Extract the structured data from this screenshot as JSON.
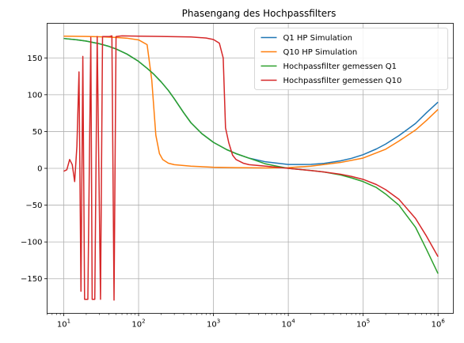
{
  "chart_data": {
    "type": "line",
    "title": "Phasengang des Hochpassfilters",
    "xlabel": "",
    "ylabel": "",
    "xscale": "log",
    "xlim": [
      6,
      1600000
    ],
    "ylim": [
      -197,
      197
    ],
    "grid": true,
    "legend_position": "top-right",
    "x_ticks": [
      {
        "value": 10,
        "base": "10",
        "exp": "1"
      },
      {
        "value": 100,
        "base": "10",
        "exp": "2"
      },
      {
        "value": 1000,
        "base": "10",
        "exp": "3"
      },
      {
        "value": 10000,
        "base": "10",
        "exp": "4"
      },
      {
        "value": 100000,
        "base": "10",
        "exp": "5"
      },
      {
        "value": 1000000,
        "base": "10",
        "exp": "6"
      }
    ],
    "y_ticks": [
      {
        "value": 150,
        "label": "150"
      },
      {
        "value": 100,
        "label": "100"
      },
      {
        "value": 50,
        "label": "50"
      },
      {
        "value": 0,
        "label": "0"
      },
      {
        "value": -50,
        "label": "−50"
      },
      {
        "value": -100,
        "label": "−100"
      },
      {
        "value": -150,
        "label": "−150"
      }
    ],
    "series": [
      {
        "name": "Q1 HP Simulation",
        "color": "#1f77b4",
        "points": [
          [
            10,
            176.4
          ],
          [
            15,
            174.6
          ],
          [
            20,
            172.8
          ],
          [
            30,
            169.2
          ],
          [
            40,
            165.7
          ],
          [
            50,
            162.2
          ],
          [
            70,
            155.2
          ],
          [
            100,
            145.3
          ],
          [
            130,
            135.9
          ],
          [
            160,
            127.8
          ],
          [
            200,
            117.5
          ],
          [
            250,
            105.8
          ],
          [
            300,
            94.5
          ],
          [
            400,
            75.6
          ],
          [
            500,
            62.0
          ],
          [
            700,
            47.1
          ],
          [
            1000,
            35.3
          ],
          [
            1500,
            25.5
          ],
          [
            2000,
            20.0
          ],
          [
            3000,
            13.8
          ],
          [
            5000,
            8.8
          ],
          [
            10000,
            5.2
          ],
          [
            20000,
            5.3
          ],
          [
            30000,
            6.7
          ],
          [
            50000,
            10.2
          ],
          [
            70000,
            13.6
          ],
          [
            100000,
            18.6
          ],
          [
            150000,
            26.3
          ],
          [
            200000,
            33.0
          ],
          [
            300000,
            44.4
          ],
          [
            500000,
            60.9
          ],
          [
            700000,
            75.5
          ],
          [
            1000000,
            90.0
          ]
        ]
      },
      {
        "name": "Q10 HP Simulation",
        "color": "#ff7f0e",
        "points": [
          [
            10,
            179.5
          ],
          [
            20,
            179.2
          ],
          [
            30,
            178.8
          ],
          [
            40,
            178.2
          ],
          [
            50,
            177.8
          ],
          [
            70,
            176.8
          ],
          [
            100,
            174.5
          ],
          [
            130,
            168.0
          ],
          [
            150,
            120.0
          ],
          [
            170,
            45.0
          ],
          [
            190,
            20.0
          ],
          [
            210,
            12.0
          ],
          [
            250,
            7.0
          ],
          [
            300,
            5.0
          ],
          [
            500,
            3.0
          ],
          [
            1000,
            1.5
          ],
          [
            2000,
            1.0
          ],
          [
            5000,
            0.5
          ],
          [
            10000,
            1.0
          ],
          [
            20000,
            3.0
          ],
          [
            50000,
            8.0
          ],
          [
            100000,
            14.0
          ],
          [
            200000,
            26.0
          ],
          [
            300000,
            37.0
          ],
          [
            500000,
            52.0
          ],
          [
            700000,
            65.0
          ],
          [
            1000000,
            80.0
          ]
        ]
      },
      {
        "name": "Hochpassfilter gemessen Q1",
        "color": "#2ca02c",
        "points": [
          [
            10,
            176.4
          ],
          [
            15,
            174.6
          ],
          [
            20,
            172.8
          ],
          [
            30,
            169.2
          ],
          [
            40,
            165.7
          ],
          [
            50,
            162.2
          ],
          [
            70,
            155.2
          ],
          [
            100,
            145.3
          ],
          [
            130,
            135.9
          ],
          [
            160,
            127.8
          ],
          [
            200,
            117.5
          ],
          [
            250,
            105.8
          ],
          [
            300,
            94.5
          ],
          [
            400,
            75.6
          ],
          [
            500,
            62.0
          ],
          [
            700,
            47.1
          ],
          [
            1000,
            35.3
          ],
          [
            1500,
            25.5
          ],
          [
            2000,
            20.0
          ],
          [
            3000,
            13.8
          ],
          [
            5000,
            6.0
          ],
          [
            7000,
            3.0
          ],
          [
            10000,
            0.0
          ],
          [
            20000,
            -3.0
          ],
          [
            30000,
            -5.0
          ],
          [
            50000,
            -9.0
          ],
          [
            70000,
            -13.0
          ],
          [
            100000,
            -18.0
          ],
          [
            150000,
            -26.0
          ],
          [
            200000,
            -35.0
          ],
          [
            300000,
            -50.0
          ],
          [
            500000,
            -80.0
          ],
          [
            700000,
            -110.0
          ],
          [
            1000000,
            -143.0
          ]
        ]
      },
      {
        "name": "Hochpassfilter gemessen Q10",
        "color": "#d62728",
        "points": [
          [
            10,
            -4
          ],
          [
            11,
            -2
          ],
          [
            12,
            12
          ],
          [
            13,
            5
          ],
          [
            14,
            -18
          ],
          [
            15,
            30
          ],
          [
            16,
            131
          ],
          [
            17,
            -167
          ],
          [
            18,
            152
          ],
          [
            19,
            -178
          ],
          [
            21,
            -178
          ],
          [
            23,
            178
          ],
          [
            24,
            -178
          ],
          [
            26,
            -178
          ],
          [
            28,
            179
          ],
          [
            31,
            -178
          ],
          [
            33,
            179
          ],
          [
            37,
            179
          ],
          [
            41,
            179
          ],
          [
            44,
            180
          ],
          [
            47,
            -179
          ],
          [
            50,
            179
          ],
          [
            60,
            180
          ],
          [
            100,
            179.5
          ],
          [
            200,
            179.2
          ],
          [
            500,
            178.5
          ],
          [
            800,
            177.0
          ],
          [
            1000,
            175.0
          ],
          [
            1200,
            170.0
          ],
          [
            1350,
            150.0
          ],
          [
            1450,
            55.0
          ],
          [
            1600,
            35.0
          ],
          [
            1800,
            18.0
          ],
          [
            2000,
            12.0
          ],
          [
            2500,
            7.0
          ],
          [
            3000,
            5.0
          ],
          [
            5000,
            3.0
          ],
          [
            7000,
            1.5
          ],
          [
            10000,
            0.0
          ],
          [
            20000,
            -3.0
          ],
          [
            30000,
            -5.0
          ],
          [
            50000,
            -8.0
          ],
          [
            70000,
            -11.0
          ],
          [
            100000,
            -15.0
          ],
          [
            150000,
            -22.0
          ],
          [
            200000,
            -29.0
          ],
          [
            300000,
            -42.0
          ],
          [
            500000,
            -68.0
          ],
          [
            700000,
            -92.0
          ],
          [
            1000000,
            -120.0
          ]
        ]
      }
    ]
  }
}
